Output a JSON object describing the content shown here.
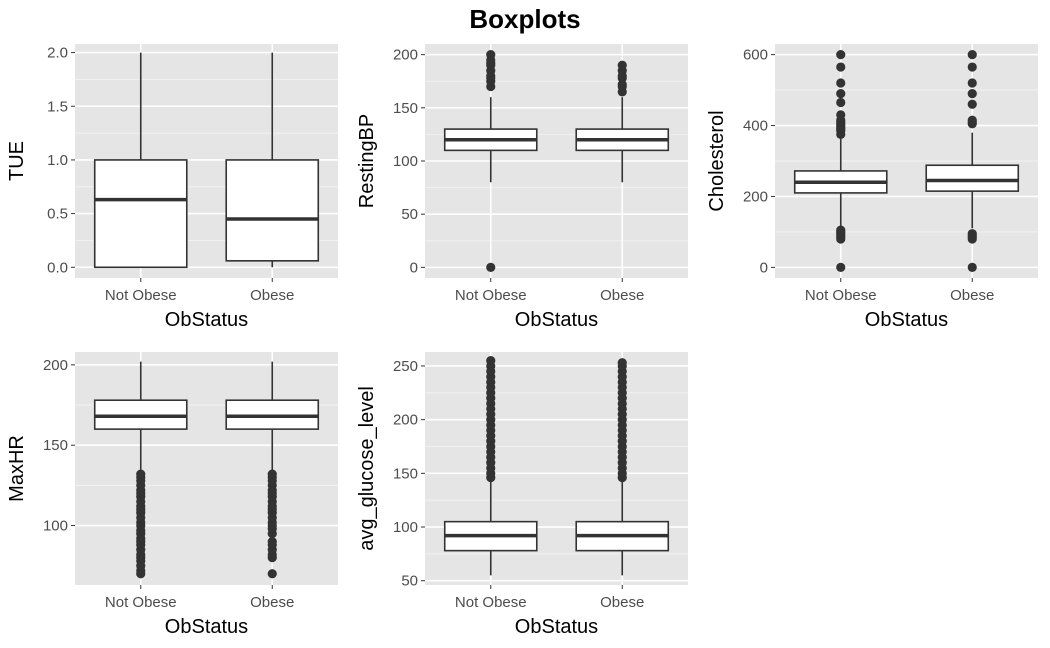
{
  "title": "Boxplots",
  "colors": {
    "panel_bg": "#e5e5e5",
    "grid_major": "#ffffff",
    "box_fill": "#ffffff",
    "ink": "#333333",
    "tick_text": "#4d4d4d"
  },
  "chart_data": [
    {
      "type": "box",
      "xlabel": "ObStatus",
      "ylabel": "TUE",
      "categories": [
        "Not Obese",
        "Obese"
      ],
      "ylim": [
        -0.1,
        2.08
      ],
      "yticks": [
        0,
        0.5,
        1,
        1.5,
        2
      ],
      "ytick_labels": [
        "0.0",
        "0.5",
        "1.0",
        "1.5",
        "2.0"
      ],
      "boxes": [
        {
          "q1": 0,
          "median": 0.63,
          "q3": 1,
          "whisker_low": 0,
          "whisker_high": 2,
          "outliers": []
        },
        {
          "q1": 0.06,
          "median": 0.45,
          "q3": 1,
          "whisker_low": 0,
          "whisker_high": 2,
          "outliers": []
        }
      ]
    },
    {
      "type": "box",
      "xlabel": "ObStatus",
      "ylabel": "RestingBP",
      "categories": [
        "Not Obese",
        "Obese"
      ],
      "ylim": [
        -10,
        210
      ],
      "yticks": [
        0,
        50,
        100,
        150,
        200
      ],
      "ytick_labels": [
        "0",
        "50",
        "100",
        "150",
        "200"
      ],
      "boxes": [
        {
          "q1": 110,
          "median": 120,
          "q3": 130,
          "whisker_low": 80,
          "whisker_high": 160,
          "outliers": [
            0,
            170,
            175,
            178,
            180,
            185,
            190,
            192,
            195,
            200
          ]
        },
        {
          "q1": 110,
          "median": 120,
          "q3": 130,
          "whisker_low": 80,
          "whisker_high": 160,
          "outliers": [
            165,
            170,
            172,
            178,
            180,
            185,
            190
          ]
        }
      ]
    },
    {
      "type": "box",
      "xlabel": "ObStatus",
      "ylabel": "Cholesterol",
      "categories": [
        "Not Obese",
        "Obese"
      ],
      "ylim": [
        -30,
        630
      ],
      "yticks": [
        0,
        200,
        400,
        600
      ],
      "ytick_labels": [
        "0",
        "200",
        "400",
        "600"
      ],
      "boxes": [
        {
          "q1": 210,
          "median": 240,
          "q3": 272,
          "whisker_low": 115,
          "whisker_high": 365,
          "outliers": [
            0,
            80,
            85,
            90,
            95,
            100,
            105,
            375,
            385,
            390,
            395,
            400,
            405,
            410,
            415,
            430,
            465,
            490,
            520,
            565,
            600
          ]
        },
        {
          "q1": 215,
          "median": 245,
          "q3": 288,
          "whisker_low": 110,
          "whisker_high": 380,
          "outliers": [
            0,
            80,
            85,
            90,
            95,
            405,
            410,
            415,
            460,
            490,
            520,
            565,
            600
          ]
        }
      ]
    },
    {
      "type": "box",
      "xlabel": "ObStatus",
      "ylabel": "MaxHR",
      "categories": [
        "Not Obese",
        "Obese"
      ],
      "ylim": [
        63,
        208
      ],
      "yticks": [
        100,
        150,
        200
      ],
      "ytick_labels": [
        "100",
        "150",
        "200"
      ],
      "boxes": [
        {
          "q1": 160,
          "median": 168,
          "q3": 178,
          "whisker_low": 133,
          "whisker_high": 202,
          "outliers": [
            70,
            72,
            75,
            78,
            80,
            82,
            85,
            88,
            90,
            92,
            95,
            97,
            100,
            102,
            105,
            108,
            110,
            112,
            115,
            118,
            120,
            122,
            125,
            128,
            130,
            132
          ]
        },
        {
          "q1": 160,
          "median": 168,
          "q3": 178,
          "whisker_low": 133,
          "whisker_high": 202,
          "outliers": [
            70,
            80,
            82,
            85,
            88,
            90,
            95,
            98,
            100,
            102,
            105,
            108,
            110,
            112,
            115,
            118,
            120,
            122,
            125,
            128,
            130,
            132
          ]
        }
      ]
    },
    {
      "type": "box",
      "xlabel": "ObStatus",
      "ylabel": "avg_glucose_level",
      "categories": [
        "Not Obese",
        "Obese"
      ],
      "ylim": [
        46,
        263
      ],
      "yticks": [
        50,
        100,
        150,
        200,
        250
      ],
      "ytick_labels": [
        "50",
        "100",
        "150",
        "200",
        "250"
      ],
      "boxes": [
        {
          "q1": 78,
          "median": 92,
          "q3": 105,
          "whisker_low": 55,
          "whisker_high": 145,
          "outliers": [
            146,
            150,
            155,
            160,
            165,
            170,
            175,
            180,
            185,
            190,
            195,
            200,
            205,
            210,
            215,
            220,
            225,
            230,
            235,
            240,
            245,
            250,
            255
          ]
        },
        {
          "q1": 78,
          "median": 92,
          "q3": 105,
          "whisker_low": 55,
          "whisker_high": 145,
          "outliers": [
            146,
            150,
            155,
            160,
            165,
            170,
            175,
            180,
            185,
            190,
            195,
            200,
            205,
            210,
            215,
            220,
            225,
            230,
            235,
            240,
            245,
            250,
            253
          ]
        }
      ]
    }
  ]
}
